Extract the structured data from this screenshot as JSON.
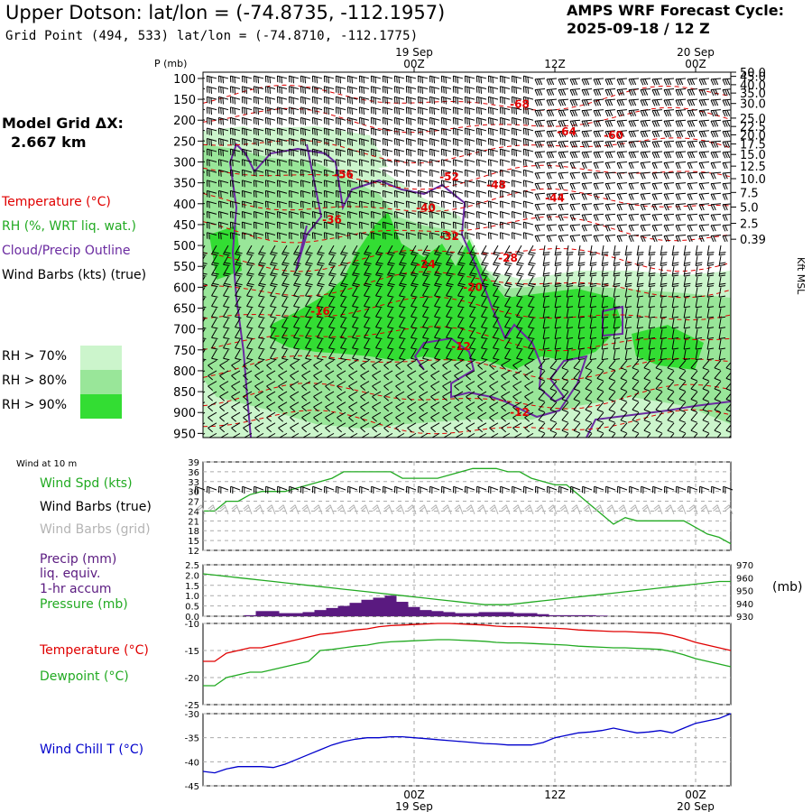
{
  "header": {
    "title": "Upper Dotson:  lat/lon = (-74.8735, -112.1957)",
    "subtitle": "Grid Point (494, 533) lat/lon = (-74.8710, -112.1775)",
    "cycle_line1": "AMPS WRF Forecast Cycle:",
    "cycle_line2": "2025-09-18 / 12  Z",
    "grid_line1": "Model Grid ΔX:",
    "grid_line2": "2.667 km"
  },
  "legend": {
    "temperature": "Temperature (°C)",
    "rh": "RH (%, WRT liq. wat.)",
    "cloud": "Cloud/Precip Outline",
    "wind_barbs": "Wind Barbs (kts) (true)",
    "rh70": "RH > 70%",
    "rh80": "RH > 80%",
    "rh90": "RH > 90%"
  },
  "colors": {
    "temperature": "#e00000",
    "rh": "#22aa22",
    "cloud": "#6a2aa0",
    "wind_chill": "#0000cc",
    "precip": "#5a1a80",
    "rh70": "#ccf5cc",
    "rh80": "#99e699",
    "rh90": "#33dd33"
  },
  "time_axis": {
    "top_date_labels": [
      "19 Sep",
      "20 Sep"
    ],
    "bottom_date_labels": [
      "19 Sep",
      "20 Sep"
    ],
    "hour_labels": [
      "00Z",
      "12Z",
      "00Z"
    ]
  },
  "chart_data": [
    {
      "type": "heatmap",
      "name": "time-height cross section",
      "ylabel_left": "P (mb)",
      "ylabel_right": "Kft MSL",
      "pressure_ticks": [
        "100",
        "150",
        "200",
        "250",
        "300",
        "350",
        "400",
        "450",
        "500",
        "550",
        "600",
        "650",
        "700",
        "750",
        "800",
        "850",
        "900",
        "950"
      ],
      "height_ticks": [
        "50.0",
        "45.0",
        "40.0",
        "35.0",
        "30.0",
        "25.0",
        "22.5",
        "20.0",
        "17.5",
        "15.0",
        "12.5",
        "10.0",
        "7.5",
        "5.0",
        "2.5",
        "0.39"
      ],
      "height_tick_pressures": [
        85,
        95,
        115,
        135,
        160,
        195,
        215,
        235,
        257,
        282,
        310,
        340,
        373,
        408,
        447,
        485
      ],
      "temperature_labels": [
        {
          "text": "-68",
          "hour": 9,
          "p": 162
        },
        {
          "text": "-64",
          "hour": 13,
          "p": 228
        },
        {
          "text": "-60",
          "hour": 17,
          "p": 236
        },
        {
          "text": "-56",
          "hour": -6,
          "p": 330
        },
        {
          "text": "-52",
          "hour": 3,
          "p": 336
        },
        {
          "text": "-48",
          "hour": 7,
          "p": 355
        },
        {
          "text": "-44",
          "hour": 12,
          "p": 386
        },
        {
          "text": "-40",
          "hour": 1,
          "p": 410
        },
        {
          "text": "-36",
          "hour": -7,
          "p": 438
        },
        {
          "text": "-32",
          "hour": 3,
          "p": 478
        },
        {
          "text": "-28",
          "hour": 8,
          "p": 530
        },
        {
          "text": "-24",
          "hour": 1,
          "p": 545
        },
        {
          "text": "-20",
          "hour": 5,
          "p": 600
        },
        {
          "text": "-16",
          "hour": -8,
          "p": 658
        },
        {
          "text": "-12",
          "hour": 4,
          "p": 742
        },
        {
          "text": "-12",
          "hour": 9,
          "p": 900
        }
      ]
    },
    {
      "type": "line",
      "name": "wind at 10 m",
      "panel_label": "Wind at 10 m",
      "series_labels": [
        "Wind Spd (kts)",
        "Wind Barbs (true)",
        "Wind Barbs (grid)"
      ],
      "ylim": [
        12,
        39
      ],
      "y_ticks": [
        "39",
        "36",
        "33",
        "30",
        "27",
        "24",
        "21",
        "18",
        "15",
        "12"
      ],
      "x_hours": [
        -18,
        -17,
        -16,
        -15,
        -14,
        -13,
        -12,
        -11,
        -10,
        -9,
        -8,
        -7,
        -6,
        -5,
        -4,
        -3,
        -2,
        -1,
        0,
        1,
        2,
        3,
        4,
        5,
        6,
        7,
        8,
        9,
        10,
        11,
        12,
        13,
        14,
        15,
        16,
        17,
        18,
        19,
        20,
        21,
        22,
        23,
        24,
        25,
        26,
        27
      ],
      "wind_speed": [
        24,
        24,
        27,
        27,
        29,
        30,
        30,
        30,
        31,
        32,
        33,
        34,
        36,
        36,
        36,
        36,
        36,
        34,
        34,
        34,
        34,
        35,
        36,
        37,
        37,
        37,
        36,
        36,
        34,
        33,
        32,
        32,
        29,
        26,
        23,
        20,
        22,
        21,
        21,
        21,
        21,
        21,
        19,
        17,
        16,
        14
      ]
    },
    {
      "type": "bar",
      "name": "precip and pressure",
      "series_labels": [
        "Precip (mm)",
        "liq. equiv.",
        "1-hr accum",
        "Pressure (mb)"
      ],
      "ylim_precip": [
        0,
        2.5
      ],
      "y_ticks_left": [
        "2.5",
        "2.0",
        "1.5",
        "1.0",
        "0.5",
        "0.0"
      ],
      "ylim_pressure": [
        930,
        970
      ],
      "y_ticks_right": [
        "970",
        "960",
        "950",
        "940",
        "930"
      ],
      "right_unit": "(mb)",
      "x_hours": [
        -18,
        -17,
        -16,
        -15,
        -14,
        -13,
        -12,
        -11,
        -10,
        -9,
        -8,
        -7,
        -6,
        -5,
        -4,
        -3,
        -2,
        -1,
        0,
        1,
        2,
        3,
        4,
        5,
        6,
        7,
        8,
        9,
        10,
        11,
        12,
        13,
        14,
        15,
        16,
        17,
        18,
        19,
        20,
        21,
        22,
        23,
        24,
        25,
        26,
        27
      ],
      "precip": [
        0,
        0,
        0,
        0,
        0.05,
        0.25,
        0.25,
        0.15,
        0.15,
        0.2,
        0.3,
        0.4,
        0.5,
        0.65,
        0.8,
        0.9,
        1.0,
        0.7,
        0.45,
        0.3,
        0.25,
        0.2,
        0.15,
        0.15,
        0.2,
        0.2,
        0.2,
        0.15,
        0.15,
        0.1,
        0.05,
        0.05,
        0.05,
        0.05,
        0.03,
        0,
        0,
        0,
        0,
        0,
        0,
        0,
        0,
        0,
        0,
        0
      ],
      "pressure": [
        963,
        962,
        961,
        960,
        959,
        958,
        957,
        956,
        955,
        954,
        953,
        952,
        951,
        950,
        949,
        948,
        947,
        946,
        945,
        944,
        943,
        942,
        941,
        940,
        939,
        939,
        939,
        940,
        941,
        942,
        943,
        944,
        945,
        946,
        947,
        948,
        949,
        950,
        951,
        952,
        953,
        954,
        955,
        956,
        957,
        957
      ]
    },
    {
      "type": "line",
      "name": "temperature and dewpoint",
      "series_labels": [
        "Temperature (°C)",
        "Dewpoint (°C)"
      ],
      "ylim": [
        -25,
        -10
      ],
      "y_ticks": [
        "-10",
        "-15",
        "-20",
        "-25"
      ],
      "x_hours": [
        -18,
        -17,
        -16,
        -15,
        -14,
        -13,
        -12,
        -11,
        -10,
        -9,
        -8,
        -7,
        -6,
        -5,
        -4,
        -3,
        -2,
        -1,
        0,
        1,
        2,
        3,
        4,
        5,
        6,
        7,
        8,
        9,
        10,
        11,
        12,
        13,
        14,
        15,
        16,
        17,
        18,
        19,
        20,
        21,
        22,
        23,
        24,
        25,
        26,
        27
      ],
      "temperature": [
        -17,
        -17,
        -15.5,
        -15,
        -14.5,
        -14.5,
        -14,
        -13.5,
        -13,
        -12.5,
        -12,
        -11.8,
        -11.5,
        -11.2,
        -11,
        -10.6,
        -10.4,
        -10.3,
        -10.2,
        -10.1,
        -10,
        -10,
        -10.1,
        -10.2,
        -10.3,
        -10.5,
        -10.6,
        -10.6,
        -10.7,
        -10.8,
        -10.9,
        -11,
        -11.2,
        -11.3,
        -11.4,
        -11.5,
        -11.5,
        -11.6,
        -11.7,
        -11.8,
        -12.2,
        -12.8,
        -13.5,
        -14,
        -14.5,
        -15
      ]
    },
    {
      "type": "line",
      "name": "wind chill",
      "series_labels": [
        "Wind Chill T (°C)"
      ],
      "ylim": [
        -45,
        -30
      ],
      "y_ticks": [
        "-30",
        "-35",
        "-40",
        "-45"
      ],
      "x_hours": [
        -18,
        -17,
        -16,
        -15,
        -14,
        -13,
        -12,
        -11,
        -10,
        -9,
        -8,
        -7,
        -6,
        -5,
        -4,
        -3,
        -2,
        -1,
        0,
        1,
        2,
        3,
        4,
        5,
        6,
        7,
        8,
        9,
        10,
        11,
        12,
        13,
        14,
        15,
        16,
        17,
        18,
        19,
        20,
        21,
        22,
        23,
        24,
        25,
        26,
        27
      ],
      "wind_chill": [
        -42,
        -42.3,
        -41.5,
        -41,
        -41,
        -41,
        -41.2,
        -40.5,
        -39.5,
        -38.5,
        -37.5,
        -36.5,
        -35.8,
        -35.3,
        -35,
        -35,
        -34.8,
        -34.8,
        -35,
        -35.2,
        -35.4,
        -35.6,
        -35.8,
        -36,
        -36.2,
        -36.3,
        -36.5,
        -36.5,
        -36.5,
        -36,
        -35,
        -34.5,
        -34,
        -33.8,
        -33.5,
        -33,
        -33.5,
        -34,
        -33.8,
        -33.5,
        -34,
        -33,
        -32,
        -31.5,
        -31,
        -30
      ]
    }
  ]
}
